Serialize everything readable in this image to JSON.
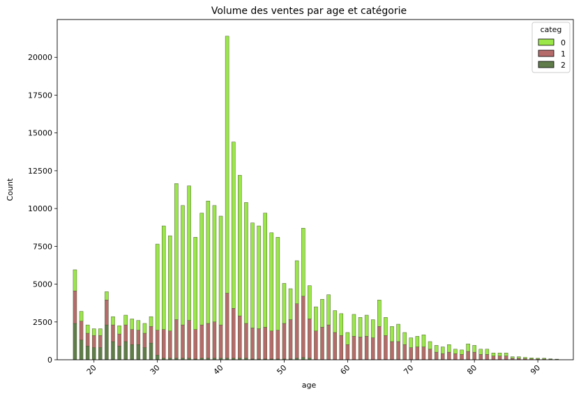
{
  "chart_data": {
    "type": "bar",
    "stacked": true,
    "title": "Volume des ventes par age et catégorie",
    "xlabel": "age",
    "ylabel": "Count",
    "xlim": [
      14.2,
      95.6
    ],
    "ylim": [
      0,
      22500
    ],
    "xticks": [
      20,
      30,
      40,
      50,
      60,
      70,
      80,
      90
    ],
    "yticks": [
      0,
      2500,
      5000,
      7500,
      10000,
      12500,
      15000,
      17500,
      20000
    ],
    "ytick_labels": [
      "0",
      "2500",
      "5000",
      "7500",
      "10000",
      "12500",
      "15000",
      "17500",
      "20000"
    ],
    "xtick_labels": [
      "20",
      "30",
      "40",
      "50",
      "60",
      "70",
      "80",
      "90"
    ],
    "xtick_rotation": 45,
    "grid": false,
    "legend": {
      "title": "categ",
      "placement": "top-right",
      "entries": [
        "0",
        "1",
        "2"
      ]
    },
    "x": [
      17,
      18,
      19,
      20,
      21,
      22,
      23,
      24,
      25,
      26,
      27,
      28,
      29,
      30,
      31,
      32,
      33,
      34,
      35,
      36,
      37,
      38,
      39,
      40,
      41,
      42,
      43,
      44,
      45,
      46,
      47,
      48,
      49,
      50,
      51,
      52,
      53,
      54,
      55,
      56,
      57,
      58,
      59,
      60,
      61,
      62,
      63,
      64,
      65,
      66,
      67,
      68,
      69,
      70,
      71,
      72,
      73,
      74,
      75,
      76,
      77,
      78,
      79,
      80,
      81,
      82,
      83,
      84,
      85,
      86,
      87,
      88,
      89,
      90,
      91,
      92,
      93
    ],
    "series": [
      {
        "name": "2",
        "color": "#5f7c4a",
        "values": [
          2400,
          1300,
          900,
          800,
          800,
          2300,
          1200,
          900,
          1200,
          1000,
          1000,
          800,
          1100,
          300,
          100,
          100,
          100,
          100,
          100,
          50,
          100,
          100,
          100,
          100,
          100,
          100,
          100,
          100,
          50,
          50,
          50,
          50,
          50,
          50,
          50,
          100,
          150,
          100,
          0,
          0,
          0,
          0,
          0,
          0,
          0,
          0,
          0,
          0,
          0,
          0,
          0,
          0,
          0,
          0,
          0,
          0,
          0,
          0,
          0,
          0,
          0,
          0,
          0,
          0,
          0,
          0,
          0,
          0,
          0,
          0,
          0,
          0,
          0,
          0,
          0,
          0,
          0
        ]
      },
      {
        "name": "1",
        "color": "#b66b6b",
        "values": [
          2150,
          1250,
          850,
          800,
          800,
          1650,
          1100,
          800,
          1100,
          1000,
          950,
          950,
          1100,
          1650,
          1900,
          1800,
          2550,
          2200,
          2500,
          1950,
          2200,
          2300,
          2400,
          2200,
          4300,
          3300,
          2800,
          2300,
          2050,
          2000,
          2100,
          1850,
          1900,
          2350,
          2600,
          3600,
          4050,
          2600,
          1900,
          2150,
          2300,
          1800,
          1600,
          1000,
          1550,
          1500,
          1550,
          1450,
          2200,
          1600,
          1200,
          1200,
          1000,
          800,
          850,
          850,
          700,
          500,
          400,
          500,
          400,
          350,
          550,
          500,
          350,
          350,
          250,
          250,
          250,
          100,
          100,
          80,
          60,
          50,
          50,
          30,
          20
        ]
      },
      {
        "name": "0",
        "color": "#9be74a",
        "values": [
          1400,
          650,
          550,
          450,
          450,
          550,
          550,
          550,
          650,
          700,
          650,
          650,
          650,
          5700,
          6850,
          6300,
          9000,
          7900,
          8900,
          6100,
          7400,
          8100,
          7700,
          7200,
          17000,
          11000,
          9300,
          8000,
          6950,
          6800,
          7550,
          6500,
          6150,
          2650,
          2050,
          2850,
          4500,
          2200,
          1600,
          1850,
          2000,
          1450,
          1450,
          800,
          1450,
          1300,
          1400,
          1200,
          1750,
          1200,
          1000,
          1150,
          800,
          650,
          700,
          800,
          500,
          450,
          450,
          500,
          300,
          300,
          500,
          450,
          350,
          350,
          200,
          200,
          200,
          100,
          100,
          80,
          60,
          50,
          50,
          30,
          20
        ]
      }
    ]
  }
}
